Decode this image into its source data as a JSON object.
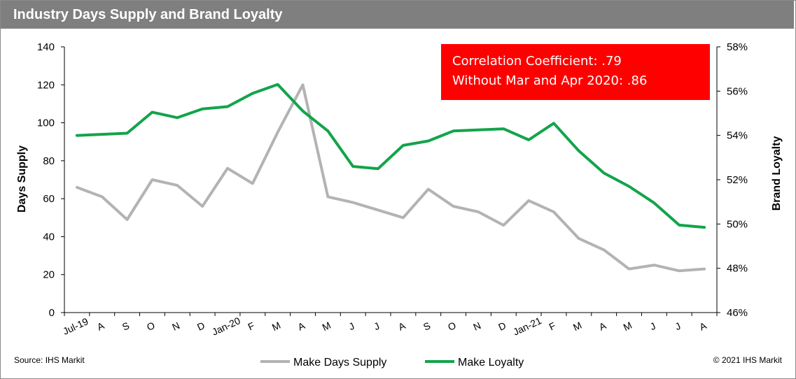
{
  "header": {
    "title": "Industry Days Supply and Brand Loyalty"
  },
  "colors": {
    "header_bg": "#7f7f7f",
    "days_supply": "#b3b3b3",
    "loyalty": "#12a44a",
    "annotation_bg": "#ff0000"
  },
  "annotation": {
    "line1": "Correlation Coefficient: .79",
    "line2": "Without Mar and Apr 2020: .86"
  },
  "footer": {
    "source": "Source: IHS Markit",
    "copyright": "© 2021 IHS Markit"
  },
  "chart_data": {
    "type": "line",
    "categories": [
      "Jul-19",
      "A",
      "S",
      "O",
      "N",
      "D",
      "Jan-20",
      "F",
      "M",
      "A",
      "M",
      "J",
      "J",
      "A",
      "S",
      "O",
      "N",
      "D",
      "Jan-21",
      "F",
      "M",
      "A",
      "M",
      "J",
      "J",
      "A"
    ],
    "y_left": {
      "label": "Days Supply",
      "min": 0,
      "max": 140,
      "ticks": [
        "0",
        "20",
        "40",
        "60",
        "80",
        "100",
        "120",
        "140"
      ]
    },
    "y_right": {
      "label": "Brand Loyalty",
      "min": 46,
      "max": 58,
      "ticks": [
        "46%",
        "48%",
        "50%",
        "52%",
        "54%",
        "56%",
        "58%"
      ]
    },
    "series": [
      {
        "name": "Make Days Supply",
        "axis": "left",
        "values": [
          66,
          61,
          49,
          70,
          67,
          56,
          76,
          68,
          95,
          120,
          61,
          58,
          54,
          50,
          65,
          56,
          53,
          46,
          59,
          53,
          39,
          33,
          23,
          25,
          22,
          23
        ]
      },
      {
        "name": "Make Loyalty",
        "axis": "right",
        "values": [
          54.0,
          54.05,
          54.1,
          55.05,
          54.8,
          55.2,
          55.3,
          55.9,
          56.3,
          55.1,
          54.2,
          52.6,
          52.5,
          53.55,
          53.75,
          54.2,
          54.25,
          54.3,
          53.8,
          54.55,
          53.3,
          52.3,
          51.7,
          50.95,
          49.95,
          49.85
        ]
      }
    ],
    "legend": "bottom"
  }
}
